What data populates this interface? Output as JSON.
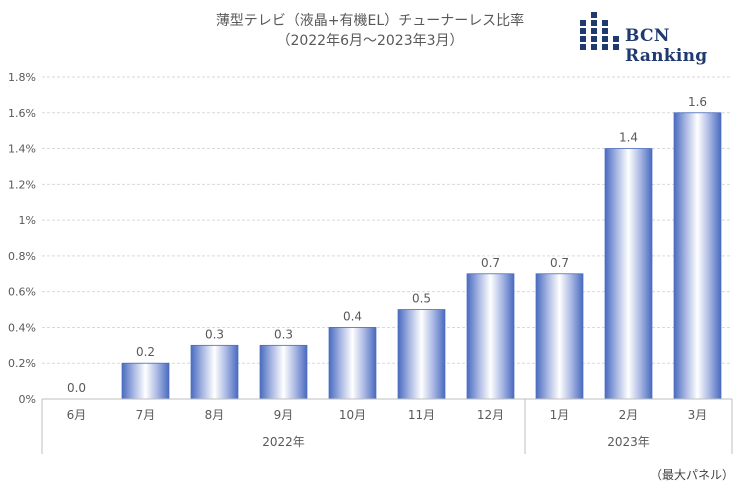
{
  "title_line1": "薄型テレビ（液晶+有機EL）チューナーレス比率",
  "title_line2": "（2022年6月～2023年3月）",
  "logo_text": "BCN Ranking",
  "footnote": "（最大パネル）",
  "chart_data": {
    "type": "bar",
    "categories": [
      "6月",
      "7月",
      "8月",
      "9月",
      "10月",
      "11月",
      "12月",
      "1月",
      "2月",
      "3月"
    ],
    "groups": [
      {
        "label": "2022年",
        "count": 7
      },
      {
        "label": "2023年",
        "count": 3
      }
    ],
    "values": [
      0.0,
      0.2,
      0.3,
      0.3,
      0.4,
      0.5,
      0.7,
      0.7,
      1.4,
      1.6
    ],
    "data_labels": [
      "0.0",
      "0.2",
      "0.3",
      "0.3",
      "0.4",
      "0.5",
      "0.7",
      "0.7",
      "1.4",
      "1.6"
    ],
    "yticks": [
      "0%",
      "0.2%",
      "0.4%",
      "0.6%",
      "0.8%",
      "1%",
      "1.2%",
      "1.4%",
      "1.6%",
      "1.8%"
    ],
    "ylim": [
      0,
      1.8
    ],
    "grid": true,
    "colors": {
      "bar_edge": "#4a6bbf",
      "bar_center": "#ffffff",
      "bar_mid": "#a9b8e3",
      "grid": "#d9d9d9",
      "axis": "#bfbfbf"
    }
  }
}
